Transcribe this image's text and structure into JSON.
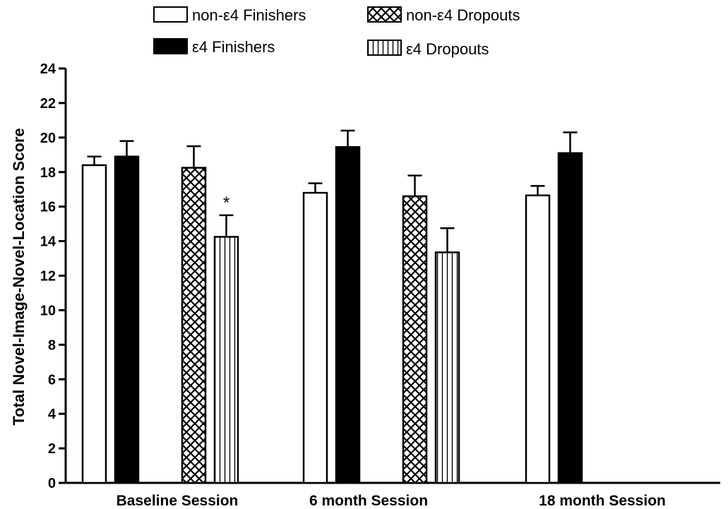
{
  "chart_data": {
    "type": "bar",
    "title": "",
    "xlabel": "",
    "ylabel": "Total Novel-Image-Novel-Location Score",
    "ylim": [
      0,
      24
    ],
    "yticks": [
      0,
      2,
      4,
      6,
      8,
      10,
      12,
      14,
      16,
      18,
      20,
      22,
      24
    ],
    "categories": [
      "Baseline Session",
      "6 month Session",
      "18 month Session"
    ],
    "grid": false,
    "legend_position": "top",
    "error_bars": true,
    "series": [
      {
        "name": "non-ε4 Finishers",
        "pattern": "white",
        "values": [
          18.4,
          16.8,
          16.65
        ],
        "errors": [
          0.5,
          0.55,
          0.55
        ]
      },
      {
        "name": "ε4 Finishers",
        "pattern": "black",
        "values": [
          18.9,
          19.45,
          19.1
        ],
        "errors": [
          0.9,
          0.95,
          1.2
        ]
      },
      {
        "name": "non-ε4 Dropouts",
        "pattern": "crosshatch",
        "values": [
          18.25,
          16.6,
          null
        ],
        "errors": [
          1.25,
          1.2,
          null
        ]
      },
      {
        "name": "ε4 Dropouts",
        "pattern": "vertical-lines",
        "values": [
          14.25,
          13.35,
          null
        ],
        "errors": [
          1.25,
          1.4,
          null
        ]
      }
    ],
    "annotations": [
      {
        "text": "*",
        "category": "Baseline Session",
        "series": "ε4 Dropouts"
      }
    ]
  }
}
